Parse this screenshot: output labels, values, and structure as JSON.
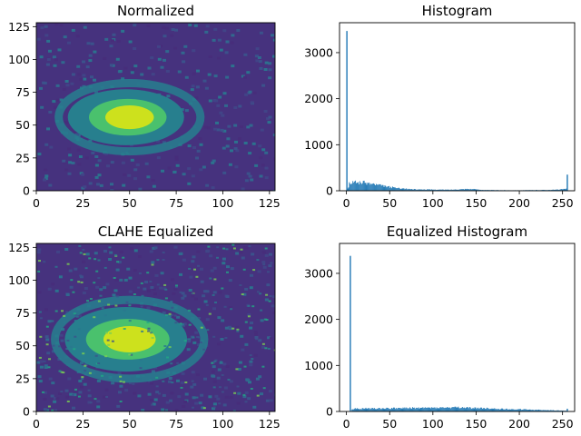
{
  "chart_data": [
    {
      "type": "heatmap",
      "title": "Normalized",
      "xlabel": "",
      "ylabel": "",
      "xlim": [
        0,
        128
      ],
      "ylim": [
        0,
        128
      ],
      "xticks": [
        0,
        25,
        50,
        75,
        100,
        125
      ],
      "yticks": [
        0,
        25,
        50,
        75,
        100,
        125
      ],
      "colormap": "viridis",
      "blob": {
        "center_x": 50,
        "center_y": 56,
        "core_radius_x": 13,
        "core_radius_y": 9,
        "ring_radius_x": 38,
        "ring_radius_y": 26
      },
      "colors": {
        "background": "#46327e",
        "mid": "#277f8e",
        "green": "#4ac16d",
        "core": "#cde11d"
      }
    },
    {
      "type": "bar",
      "title": "Histogram",
      "xlabel": "",
      "ylabel": "",
      "xlim": [
        -8,
        264
      ],
      "ylim": [
        0,
        3650
      ],
      "xticks": [
        0,
        50,
        100,
        150,
        200,
        250
      ],
      "yticks": [
        0,
        1000,
        2000,
        3000
      ],
      "color": "#1f77b4",
      "spikes": [
        {
          "x": 0,
          "count": 3470
        },
        {
          "x": 255,
          "count": 350
        }
      ],
      "profile": [
        {
          "x": 1,
          "count": 40
        },
        {
          "x": 3,
          "count": 150
        },
        {
          "x": 10,
          "count": 190
        },
        {
          "x": 20,
          "count": 175
        },
        {
          "x": 30,
          "count": 145
        },
        {
          "x": 40,
          "count": 110
        },
        {
          "x": 50,
          "count": 80
        },
        {
          "x": 60,
          "count": 55
        },
        {
          "x": 70,
          "count": 40
        },
        {
          "x": 80,
          "count": 30
        },
        {
          "x": 100,
          "count": 25
        },
        {
          "x": 120,
          "count": 22
        },
        {
          "x": 140,
          "count": 40
        },
        {
          "x": 150,
          "count": 30
        },
        {
          "x": 160,
          "count": 15
        },
        {
          "x": 200,
          "count": 10
        },
        {
          "x": 240,
          "count": 20
        },
        {
          "x": 254,
          "count": 40
        }
      ]
    },
    {
      "type": "heatmap",
      "title": "CLAHE Equalized",
      "xlabel": "",
      "ylabel": "",
      "xlim": [
        0,
        128
      ],
      "ylim": [
        0,
        128
      ],
      "xticks": [
        0,
        25,
        50,
        75,
        100,
        125
      ],
      "yticks": [
        0,
        25,
        50,
        75,
        100,
        125
      ],
      "colormap": "viridis",
      "blob": {
        "center_x": 50,
        "center_y": 55,
        "core_radius_x": 14,
        "core_radius_y": 10,
        "ring_radius_x": 40,
        "ring_radius_y": 30
      },
      "colors": {
        "background": "#46327e",
        "mid": "#277f8e",
        "green": "#4ac16d",
        "core": "#cde11d"
      }
    },
    {
      "type": "bar",
      "title": "Equalized Histogram",
      "xlabel": "",
      "ylabel": "",
      "xlim": [
        -8,
        264
      ],
      "ylim": [
        0,
        3650
      ],
      "xticks": [
        0,
        50,
        100,
        150,
        200,
        250
      ],
      "yticks": [
        0,
        1000,
        2000,
        3000
      ],
      "color": "#1f77b4",
      "spikes": [
        {
          "x": 4,
          "count": 3380
        },
        {
          "x": 255,
          "count": 60
        }
      ],
      "profile": [
        {
          "x": 6,
          "count": 55
        },
        {
          "x": 20,
          "count": 65
        },
        {
          "x": 50,
          "count": 70
        },
        {
          "x": 100,
          "count": 80
        },
        {
          "x": 130,
          "count": 85
        },
        {
          "x": 150,
          "count": 75
        },
        {
          "x": 180,
          "count": 55
        },
        {
          "x": 210,
          "count": 40
        },
        {
          "x": 240,
          "count": 25
        },
        {
          "x": 254,
          "count": 15
        }
      ]
    }
  ]
}
